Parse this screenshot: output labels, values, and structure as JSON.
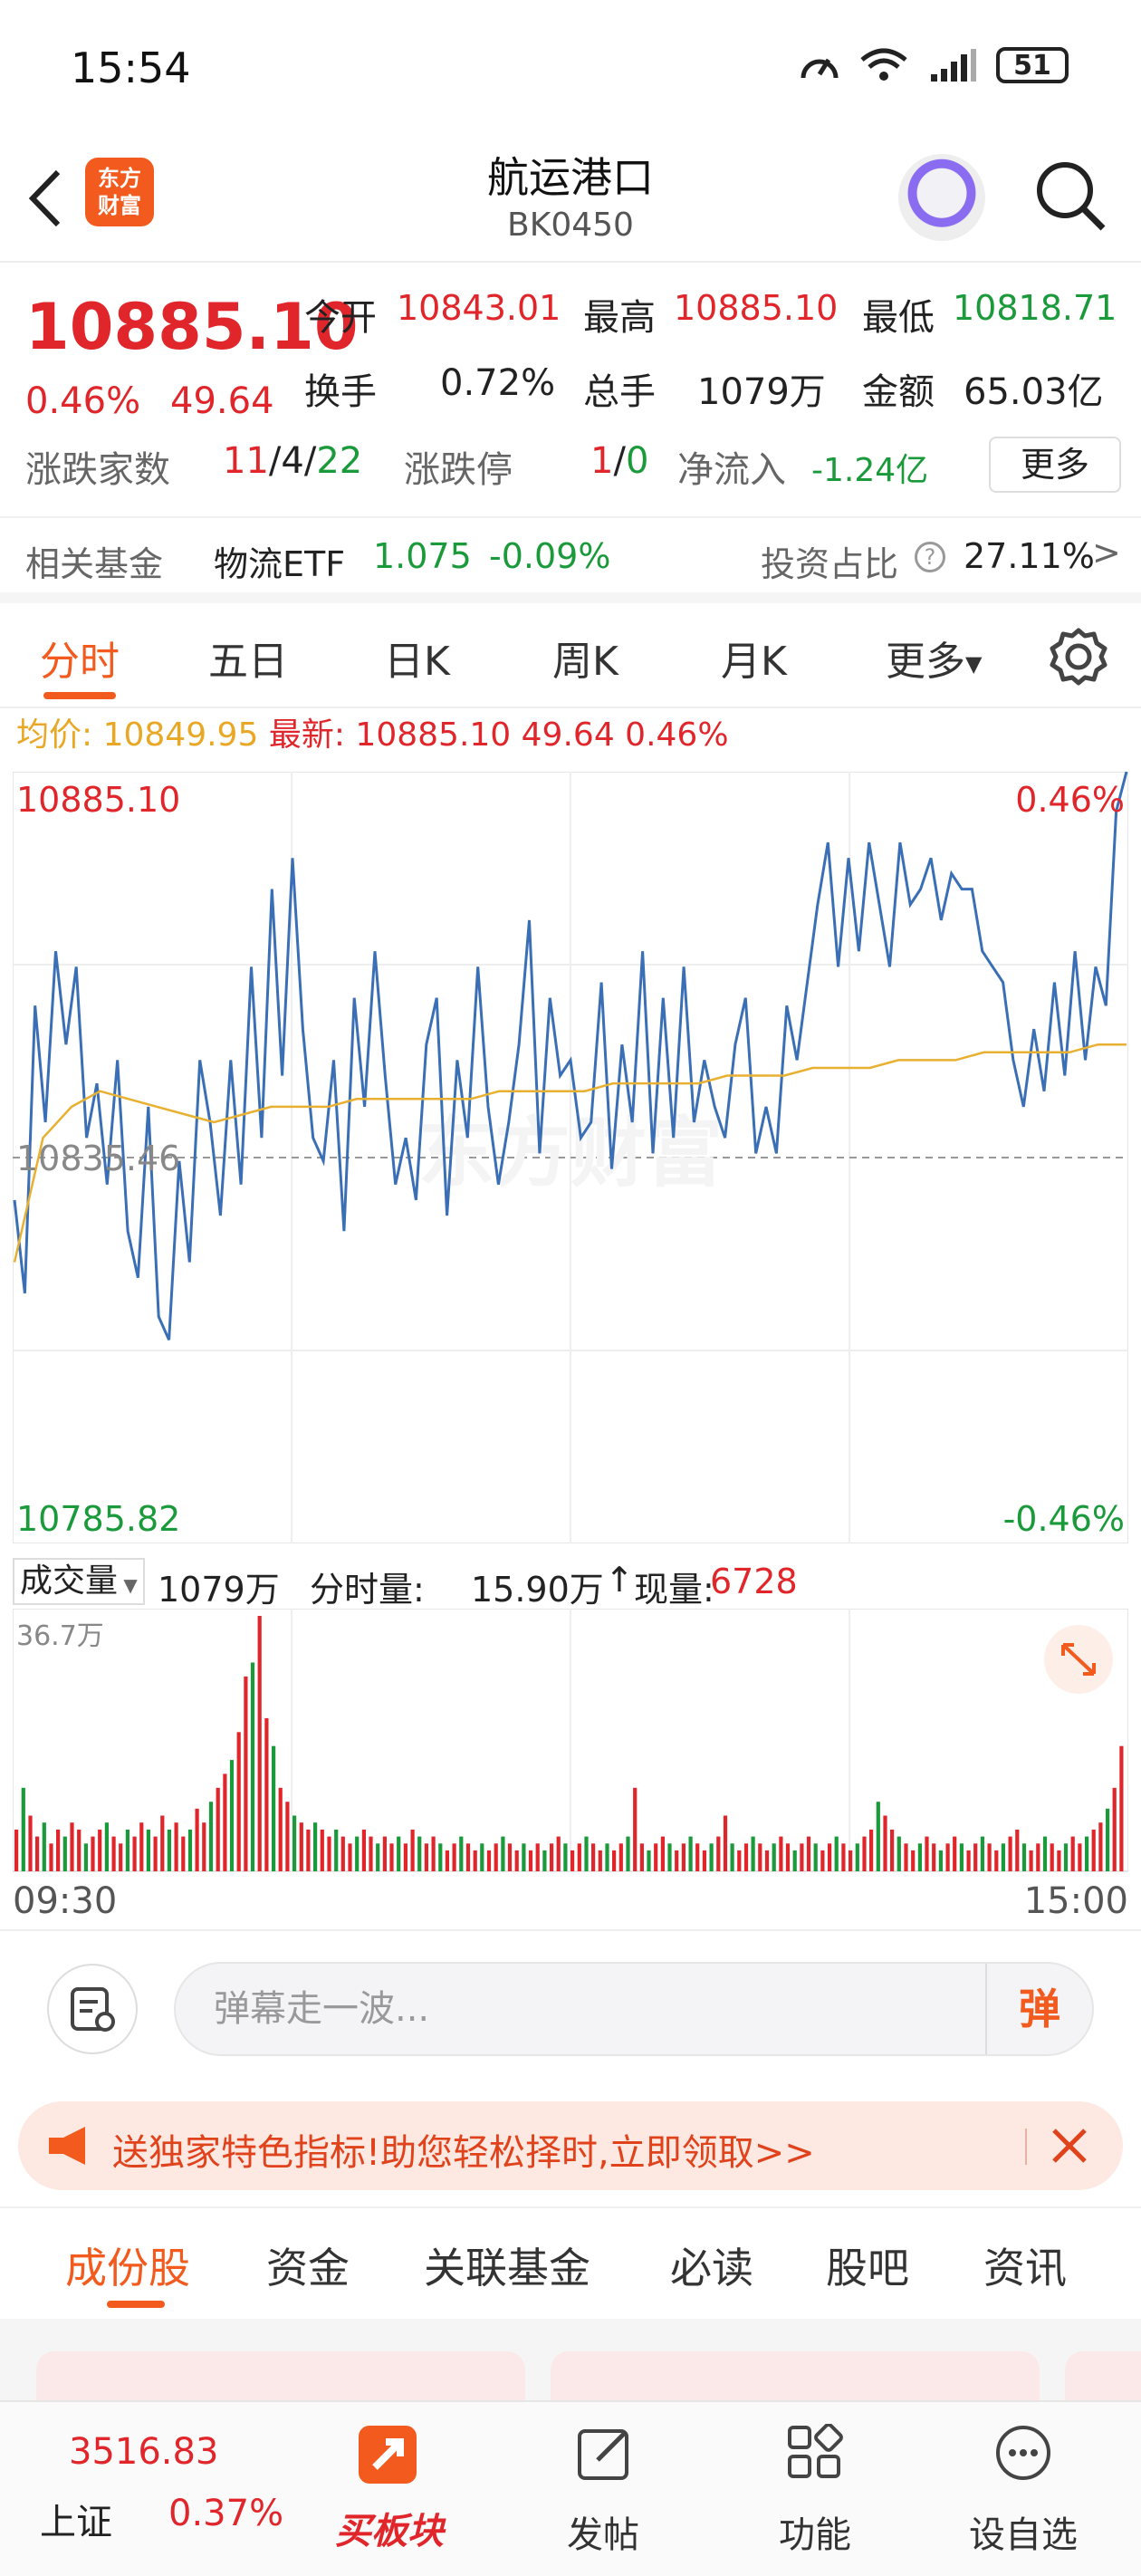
{
  "status_bar": {
    "time": "15:54",
    "battery": "51"
  },
  "header": {
    "logo_line1": "东方",
    "logo_line2": "财富",
    "title": "航运港口",
    "code": "BK0450"
  },
  "quote": {
    "price": "10885.10",
    "change_pct": "0.46%",
    "change": "49.64",
    "open_label": "今开",
    "open": "10843.01",
    "high_label": "最高",
    "high": "10885.10",
    "low_label": "最低",
    "low": "10818.71",
    "turnover_label": "换手",
    "turnover": "0.72%",
    "volume_label": "总手",
    "volume": "1079万",
    "amount_label": "金额",
    "amount": "65.03亿",
    "adv_label": "涨跌家数",
    "adv_up": "11",
    "adv_flat": "4",
    "adv_down": "22",
    "limit_label": "涨跌停",
    "limit_up": "1",
    "limit_down": "0",
    "netflow_label": "净流入",
    "netflow": "-1.24亿",
    "more": "更多"
  },
  "fund": {
    "label": "相关基金",
    "name": "物流ETF",
    "price": "1.075",
    "change": "-0.09%",
    "ratio_label": "投资占比",
    "ratio": "27.11%"
  },
  "tabs": [
    "分时",
    "五日",
    "日K",
    "周K",
    "月K",
    "更多"
  ],
  "avg_line": {
    "avg_label": "均价:",
    "avg": "10849.95",
    "last_label": "最新:",
    "last": "10885.10",
    "change": "49.64",
    "pct": "0.46%"
  },
  "chart": {
    "top_label": "10885.10",
    "top_pct": "0.46%",
    "mid_label": "10835.46",
    "bottom_label": "10785.82",
    "bottom_pct": "-0.46%",
    "watermark": "东方财富"
  },
  "chart_data": {
    "type": "line",
    "ylim": [
      10785.82,
      10885.1
    ],
    "baseline": 10835.46,
    "series": [
      {
        "values": [
          10830,
          10818,
          10855,
          10840,
          10862,
          10850,
          10860,
          10838,
          10845,
          10832,
          10848,
          10826,
          10820,
          10842,
          10815,
          10812,
          10835,
          10822,
          10848,
          10840,
          10828,
          10848,
          10832,
          10860,
          10838,
          10870,
          10846,
          10874,
          10852,
          10838,
          10835,
          10848,
          10826,
          10856,
          10842,
          10862,
          10846,
          10832,
          10838,
          10830,
          10850,
          10856,
          10828,
          10848,
          10838,
          10860,
          10842,
          10832,
          10840,
          10850,
          10866,
          10836,
          10856,
          10846,
          10848,
          10838,
          10840,
          10858,
          10834,
          10850,
          10840,
          10862,
          10836,
          10856,
          10838,
          10860,
          10840,
          10848,
          10842,
          10838,
          10850,
          10856,
          10836,
          10842,
          10836,
          10855,
          10848,
          10858,
          10868,
          10876,
          10860,
          10874,
          10862,
          10876,
          10868,
          10860,
          10876,
          10868,
          10870,
          10874,
          10866,
          10872,
          10870,
          10870,
          10862,
          10860,
          10858,
          10848,
          10842,
          10852,
          10844,
          10858,
          10846,
          10862,
          10848,
          10860,
          10855,
          10880,
          10885.1
        ]
      },
      {
        "values": [
          10822,
          10838,
          10842,
          10844,
          10843,
          10842,
          10841,
          10840,
          10841,
          10842,
          10842,
          10842,
          10843,
          10843,
          10843,
          10843,
          10843,
          10844,
          10844,
          10844,
          10844,
          10845,
          10845,
          10845,
          10845,
          10846,
          10846,
          10846,
          10847,
          10847,
          10847,
          10848,
          10848,
          10848,
          10849,
          10849,
          10849,
          10849,
          10850,
          10850
        ]
      }
    ]
  },
  "volume": {
    "label": "成交量",
    "total": "1079万",
    "minute_label": "分时量:",
    "minute": "15.90万",
    "now_label": "现量:",
    "now": "6728",
    "ymax_label": "36.7万"
  },
  "volume_data": [
    6,
    12,
    8,
    5,
    7,
    4,
    6,
    5,
    7,
    6,
    4,
    5,
    6,
    7,
    5,
    4,
    6,
    5,
    7,
    6,
    5,
    8,
    6,
    7,
    5,
    6,
    9,
    7,
    10,
    12,
    14,
    16,
    20,
    28,
    30,
    36.7,
    22,
    18,
    12,
    10,
    8,
    7,
    6,
    7,
    6,
    5,
    6,
    5,
    4,
    5,
    6,
    5,
    4,
    5,
    4,
    5,
    4,
    6,
    5,
    4,
    5,
    4,
    3,
    4,
    5,
    4,
    3,
    4,
    3,
    4,
    5,
    4,
    3,
    4,
    3,
    4,
    3,
    4,
    5,
    4,
    3,
    4,
    5,
    4,
    3,
    4,
    3,
    4,
    5,
    12,
    4,
    3,
    4,
    5,
    4,
    3,
    4,
    5,
    4,
    3,
    4,
    5,
    8,
    4,
    3,
    4,
    5,
    4,
    3,
    4,
    5,
    4,
    3,
    4,
    5,
    4,
    3,
    4,
    5,
    4,
    3,
    4,
    5,
    6,
    10,
    8,
    6,
    5,
    4,
    3,
    4,
    5,
    4,
    3,
    4,
    5,
    4,
    3,
    4,
    5,
    4,
    3,
    4,
    5,
    6,
    4,
    3,
    4,
    5,
    4,
    3,
    4,
    5,
    4,
    5,
    6,
    7,
    9,
    12,
    18
  ],
  "time_axis": {
    "start": "09:30",
    "end": "15:00"
  },
  "comment": {
    "placeholder": "弹幕走一波...",
    "danmu": "弹"
  },
  "banner": {
    "text": "送独家特色指标!助您轻松择时,立即领取>>"
  },
  "subtabs": [
    "成份股",
    "资金",
    "关联基金",
    "必读",
    "股吧",
    "资讯"
  ],
  "bottom_nav": {
    "index_price": "3516.83",
    "index_name": "上证",
    "index_pct": "0.37%",
    "items": [
      "买板块",
      "发帖",
      "功能",
      "设自选"
    ]
  }
}
